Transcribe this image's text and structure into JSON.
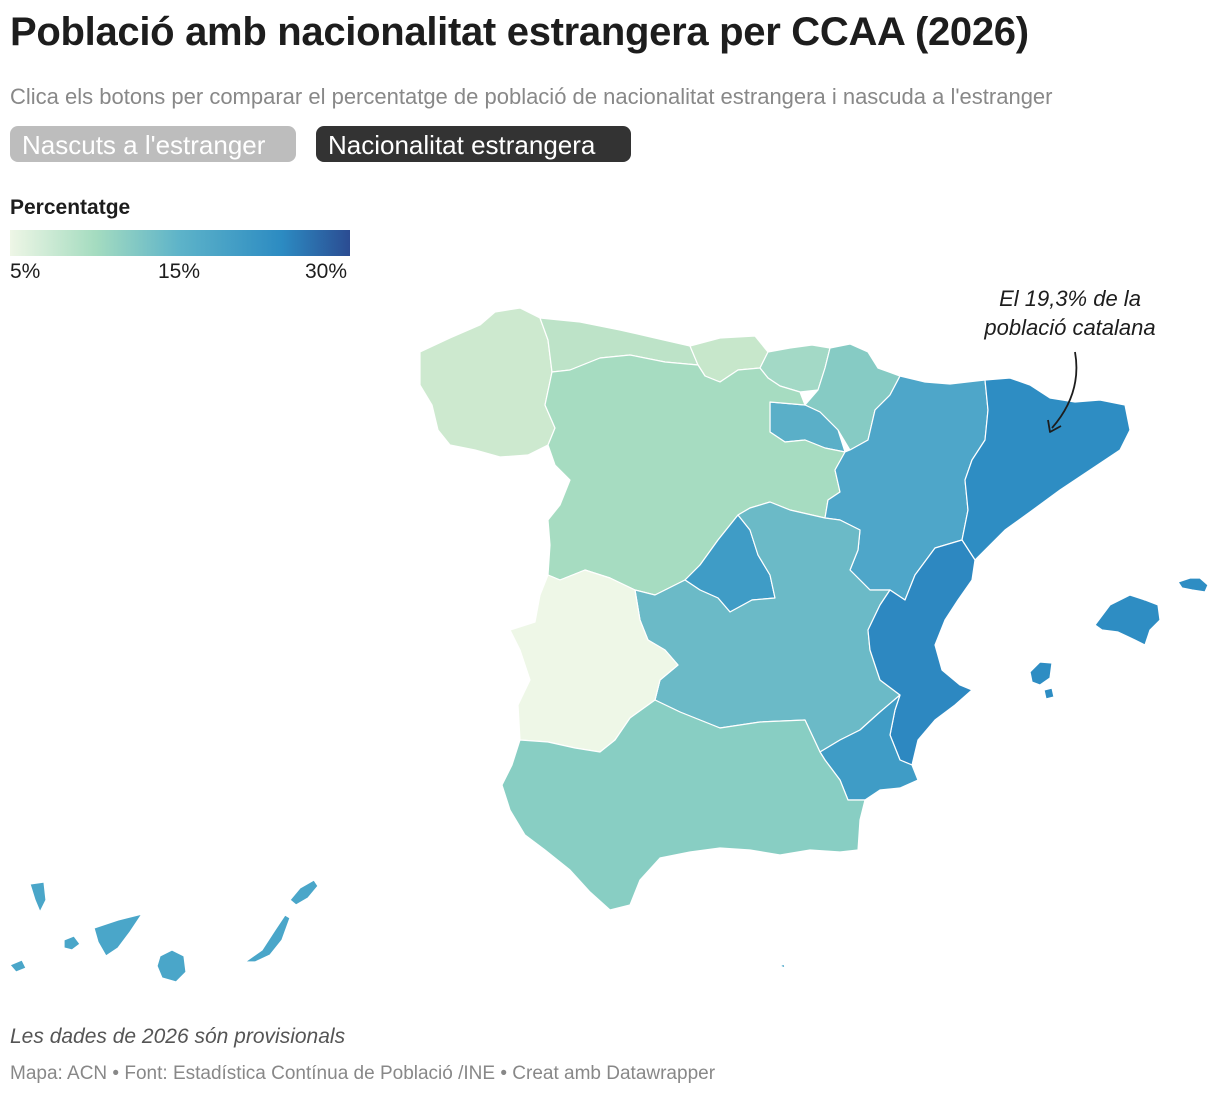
{
  "title": "Població amb nacionalitat estrangera per CCAA (2026)",
  "subtitle": "Clica els botons per comparar el percentatge de població de nacionalitat estrangera i nascuda a l'estranger",
  "buttons": [
    {
      "label": "Nascuts a l'estranger",
      "active": false
    },
    {
      "label": "Nacionalitat estrangera",
      "active": true
    }
  ],
  "legend": {
    "title": "Percentatge",
    "ticks": [
      "5%",
      "15%",
      "30%"
    ],
    "colors": [
      "#eef6e6",
      "#a5dcc0",
      "#5db3c9",
      "#2c8bc2",
      "#2b4c92"
    ]
  },
  "annotation": {
    "line1": "El 19,3% de la",
    "line2": "població catalana"
  },
  "regions": [
    {
      "name": "Galicia",
      "color": "#cde9cf"
    },
    {
      "name": "Asturias",
      "color": "#bde3c8"
    },
    {
      "name": "Cantabria",
      "color": "#c7e7cb"
    },
    {
      "name": "País Vasco",
      "color": "#a3d9c6"
    },
    {
      "name": "Navarra",
      "color": "#86cbc4"
    },
    {
      "name": "La Rioja",
      "color": "#5aafc8"
    },
    {
      "name": "Aragón",
      "color": "#4ea6c9"
    },
    {
      "name": "Catalunya",
      "color": "#2e8dc3"
    },
    {
      "name": "Castilla y León",
      "color": "#a6dcc1"
    },
    {
      "name": "Madrid",
      "color": "#3f9cc6"
    },
    {
      "name": "Castilla-La Mancha",
      "color": "#6bbac7"
    },
    {
      "name": "Extremadura",
      "color": "#eef7e7"
    },
    {
      "name": "Andalucía",
      "color": "#88cec3"
    },
    {
      "name": "Murcia",
      "color": "#3f9cc6"
    },
    {
      "name": "Comunitat Valenciana",
      "color": "#2d88c1"
    },
    {
      "name": "Illes Balears",
      "color": "#2e8dc3"
    },
    {
      "name": "Canarias",
      "color": "#4aa6c9"
    }
  ],
  "note": "Les dades de 2026 són provisionals",
  "source": "Mapa: ACN • Font: Estadística Contínua de Població /INE • Creat amb Datawrapper"
}
